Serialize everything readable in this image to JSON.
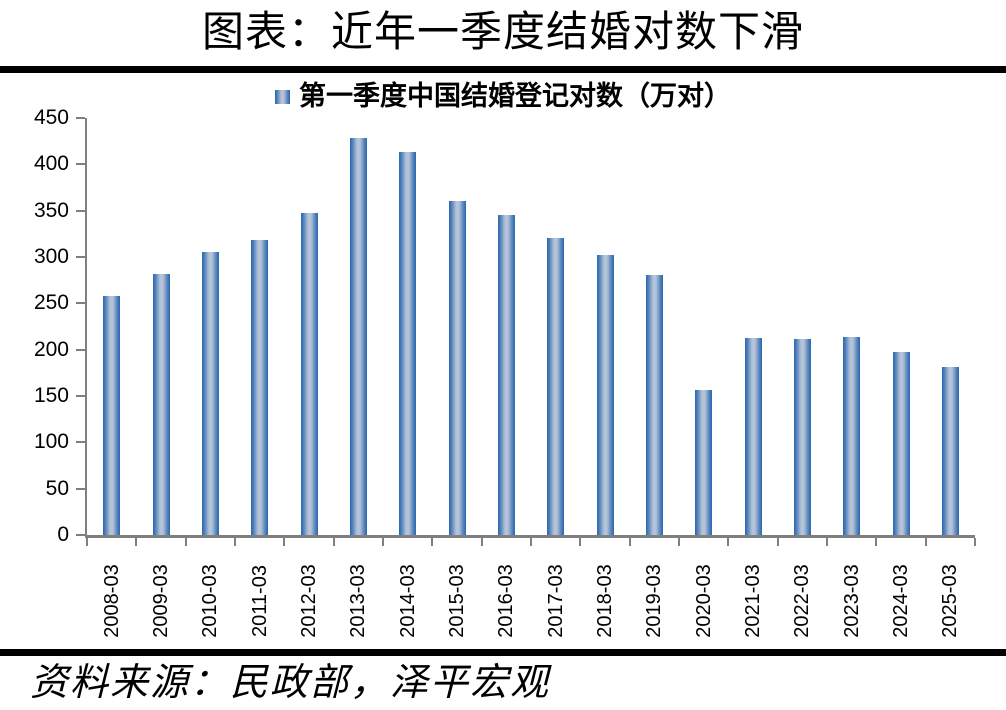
{
  "title": "图表：近年一季度结婚对数下滑",
  "legend": {
    "label": "第一季度中国结婚登记对数（万对）"
  },
  "source": "资料来源：民政部，泽平宏观",
  "colors": {
    "bar_edge": "#2b66ad",
    "bar_light": "#b5c3d8",
    "axis": "#7f7f7f",
    "text": "#000000",
    "rule": "#000000"
  },
  "chart_data": {
    "type": "bar",
    "title": "图表：近年一季度结婚对数下滑",
    "legend_label": "第一季度中国结婚登记对数（万对）",
    "legend_position": "top-center",
    "categories": [
      "2008-03",
      "2009-03",
      "2010-03",
      "2011-03",
      "2012-03",
      "2013-03",
      "2014-03",
      "2015-03",
      "2016-03",
      "2017-03",
      "2018-03",
      "2019-03",
      "2020-03",
      "2021-03",
      "2022-03",
      "2023-03",
      "2024-03",
      "2025-03"
    ],
    "values": [
      258,
      282,
      305,
      318,
      347,
      428,
      413,
      360,
      345,
      320,
      302,
      281,
      156,
      213,
      211,
      214,
      197,
      181
    ],
    "xlabel": "",
    "ylabel": "",
    "ylim": [
      0,
      450
    ],
    "ytick_step": 50,
    "grid": false,
    "source_note": "资料来源：民政部，泽平宏观"
  }
}
